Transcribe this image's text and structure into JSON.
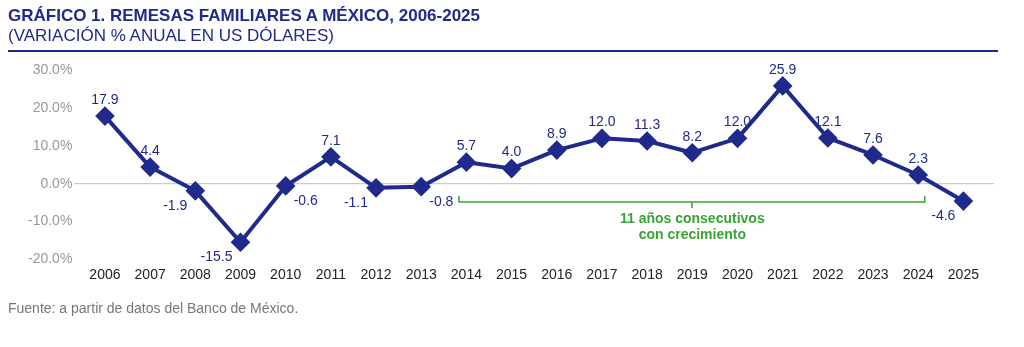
{
  "chart_data": {
    "type": "line",
    "title": "GRÁFICO 1. REMESAS FAMILIARES A MÉXICO, 2006-2025",
    "subtitle": "(VARIACIÓN % ANUAL EN US DÓLARES)",
    "categories": [
      "2006",
      "2007",
      "2008",
      "2009",
      "2010",
      "2011",
      "2012",
      "2013",
      "2014",
      "2015",
      "2016",
      "2017",
      "2018",
      "2019",
      "2020",
      "2021",
      "2022",
      "2023",
      "2024",
      "2025"
    ],
    "values": [
      17.9,
      4.4,
      -1.9,
      -15.5,
      -0.6,
      7.1,
      -1.1,
      -0.8,
      5.7,
      4.0,
      8.9,
      12.0,
      11.3,
      8.2,
      12.0,
      25.9,
      12.1,
      7.6,
      2.3,
      -4.6
    ],
    "value_labels": [
      "17.9",
      "4.4",
      "-1.9",
      "-15.5",
      "-0.6",
      "7.1",
      "-1.1",
      "-0.8",
      "5.7",
      "4.0",
      "8.9",
      "12.0",
      "11.3",
      "8.2",
      "12.0",
      "25.9",
      "12.1",
      "7.6",
      "2.3",
      "-4.6"
    ],
    "color": "#1f2a8c",
    "marker": "diamond",
    "line_style": "solid",
    "grid": false,
    "legend": false,
    "ylim": [
      -20,
      30
    ],
    "yticks": [
      {
        "value": -20,
        "label": "-20.0%"
      },
      {
        "value": -10,
        "label": "-10.0%"
      },
      {
        "value": 0,
        "label": "0.0%"
      },
      {
        "value": 10,
        "label": "10.0%"
      },
      {
        "value": 20,
        "label": "20.0%"
      },
      {
        "value": 30,
        "label": "30.0%"
      }
    ],
    "ref_lines": [
      {
        "axis": "y",
        "value": 0,
        "color": "#bfbfbf"
      }
    ],
    "annotations": [
      "11 años consecutivos con crecimiento",
      "Fuente: a partir de datos del Banco de México."
    ]
  }
}
